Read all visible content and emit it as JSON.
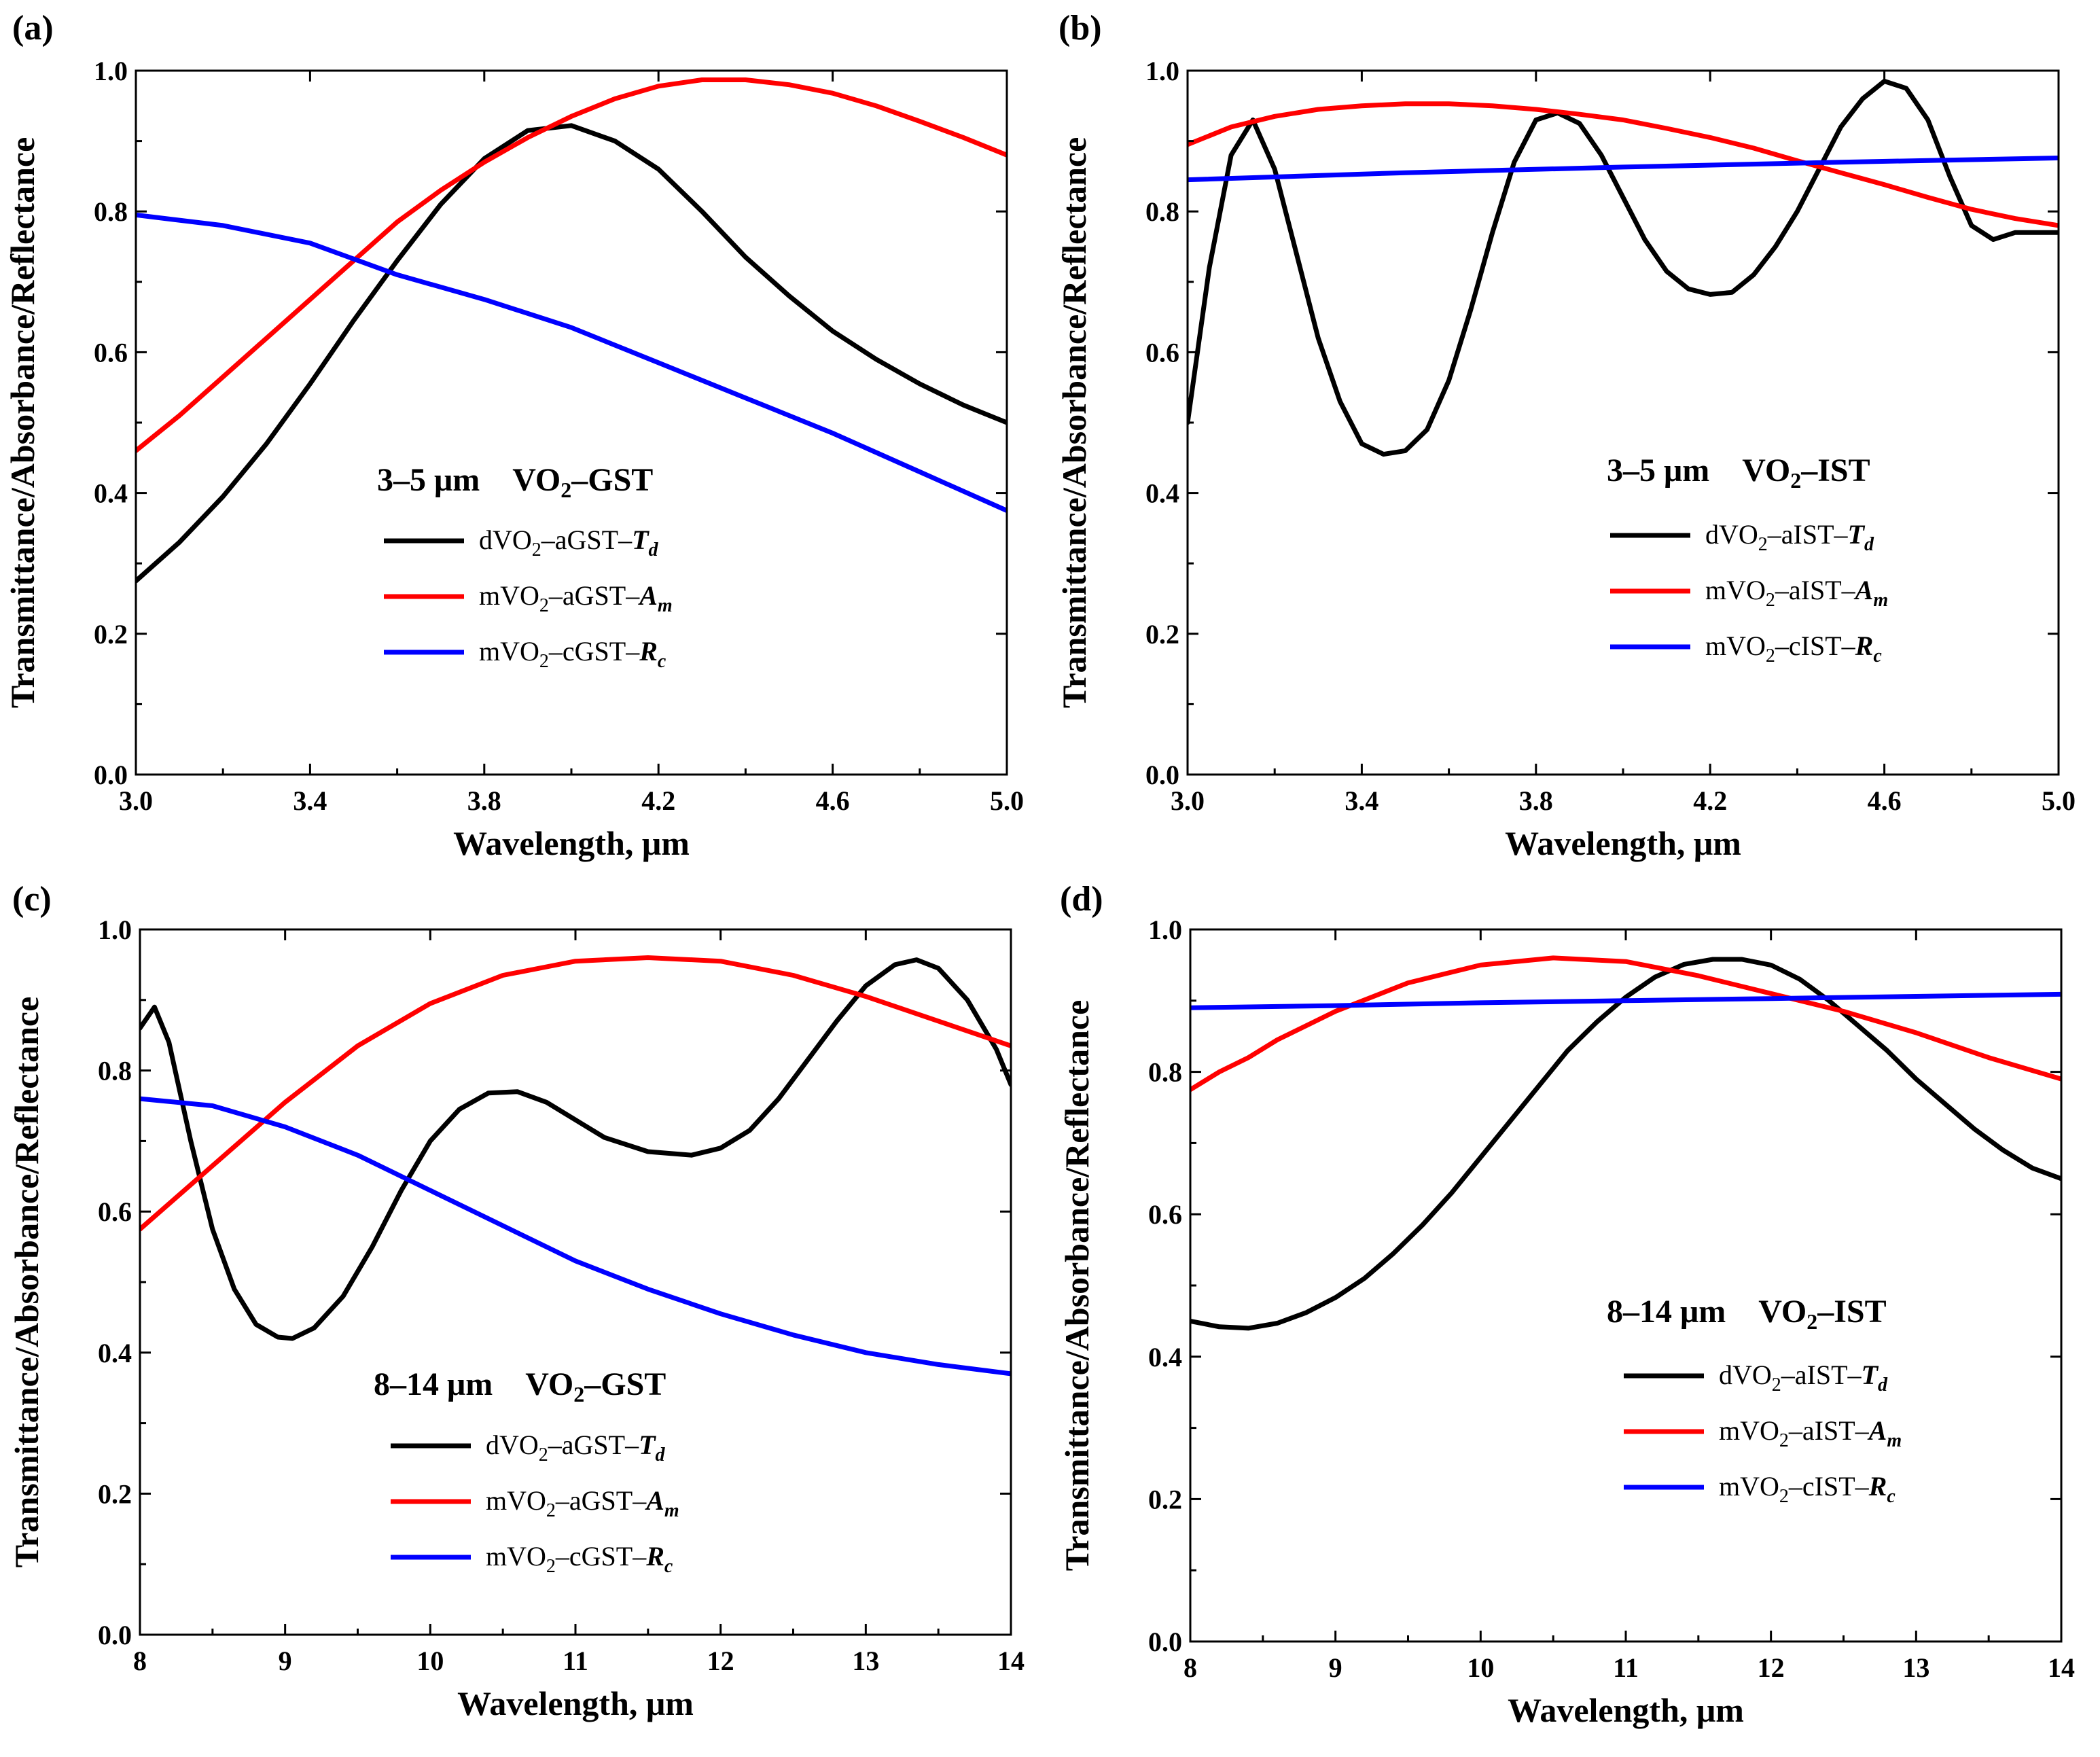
{
  "chart_data": [
    {
      "panel": "(a)",
      "type": "line",
      "annotation": {
        "range": "3–5 μm",
        "material_prefix": "VO",
        "material_sub": "2",
        "material_suffix": "–GST"
      },
      "xlabel": "Wavelength, μm",
      "ylabel": "Transmittance/Absorbance/Reflectance",
      "xlim": [
        3.0,
        5.0
      ],
      "ylim": [
        0.0,
        1.0
      ],
      "xticks": [
        "3.0",
        "3.4",
        "3.8",
        "4.2",
        "4.6",
        "5.0"
      ],
      "yticks": [
        "0.0",
        "0.2",
        "0.4",
        "0.6",
        "0.8",
        "1.0"
      ],
      "legend_position": "lower-center",
      "series": [
        {
          "prefix": "dVO",
          "sub": "2",
          "mid": "–aGST–",
          "sym": "T",
          "symsub": "d",
          "color": "#000000",
          "x": [
            3.0,
            3.1,
            3.2,
            3.3,
            3.4,
            3.5,
            3.6,
            3.7,
            3.8,
            3.9,
            4.0,
            4.1,
            4.2,
            4.3,
            4.4,
            4.5,
            4.6,
            4.7,
            4.8,
            4.9,
            5.0
          ],
          "y": [
            0.275,
            0.33,
            0.395,
            0.47,
            0.555,
            0.645,
            0.73,
            0.81,
            0.875,
            0.915,
            0.922,
            0.9,
            0.86,
            0.8,
            0.735,
            0.68,
            0.63,
            0.59,
            0.555,
            0.525,
            0.5
          ]
        },
        {
          "prefix": "mVO",
          "sub": "2",
          "mid": "–aGST–",
          "sym": "A",
          "symsub": "m",
          "color": "#ff0000",
          "x": [
            3.0,
            3.1,
            3.2,
            3.3,
            3.4,
            3.5,
            3.6,
            3.7,
            3.8,
            3.9,
            4.0,
            4.1,
            4.2,
            4.3,
            4.4,
            4.5,
            4.6,
            4.7,
            4.8,
            4.9,
            5.0
          ],
          "y": [
            0.46,
            0.51,
            0.565,
            0.62,
            0.675,
            0.73,
            0.785,
            0.83,
            0.87,
            0.905,
            0.935,
            0.96,
            0.978,
            0.987,
            0.987,
            0.98,
            0.968,
            0.95,
            0.928,
            0.905,
            0.88
          ]
        },
        {
          "prefix": "mVO",
          "sub": "2",
          "mid": "–cGST–",
          "sym": "R",
          "symsub": "c",
          "color": "#0000ff",
          "x": [
            3.0,
            3.2,
            3.4,
            3.6,
            3.8,
            4.0,
            4.2,
            4.4,
            4.6,
            4.8,
            5.0
          ],
          "y": [
            0.795,
            0.78,
            0.755,
            0.71,
            0.675,
            0.635,
            0.585,
            0.535,
            0.485,
            0.43,
            0.375
          ]
        }
      ]
    },
    {
      "panel": "(b)",
      "type": "line",
      "annotation": {
        "range": "3–5 μm",
        "material_prefix": "VO",
        "material_sub": "2",
        "material_suffix": "–IST"
      },
      "xlabel": "Wavelength, μm",
      "ylabel": "Transmittance/Absorbance/Reflectance",
      "xlim": [
        3.0,
        5.0
      ],
      "ylim": [
        0.0,
        1.0
      ],
      "xticks": [
        "3.0",
        "3.4",
        "3.8",
        "4.2",
        "4.6",
        "5.0"
      ],
      "yticks": [
        "0.0",
        "0.2",
        "0.4",
        "0.6",
        "0.8",
        "1.0"
      ],
      "legend_position": "lower-right",
      "series": [
        {
          "prefix": "dVO",
          "sub": "2",
          "mid": "–aIST–",
          "sym": "T",
          "symsub": "d",
          "color": "#000000",
          "x": [
            3.0,
            3.05,
            3.1,
            3.15,
            3.2,
            3.25,
            3.3,
            3.35,
            3.4,
            3.45,
            3.5,
            3.55,
            3.6,
            3.65,
            3.7,
            3.75,
            3.8,
            3.85,
            3.9,
            3.95,
            4.0,
            4.05,
            4.1,
            4.15,
            4.2,
            4.25,
            4.3,
            4.35,
            4.4,
            4.45,
            4.5,
            4.55,
            4.6,
            4.65,
            4.7,
            4.75,
            4.8,
            4.85,
            4.9,
            4.95,
            5.0
          ],
          "y": [
            0.5,
            0.72,
            0.88,
            0.93,
            0.86,
            0.74,
            0.62,
            0.53,
            0.47,
            0.455,
            0.46,
            0.49,
            0.56,
            0.66,
            0.77,
            0.87,
            0.93,
            0.94,
            0.925,
            0.88,
            0.82,
            0.76,
            0.715,
            0.69,
            0.682,
            0.685,
            0.71,
            0.75,
            0.8,
            0.86,
            0.92,
            0.96,
            0.985,
            0.975,
            0.93,
            0.85,
            0.78,
            0.76,
            0.77,
            0.77,
            0.77
          ]
        },
        {
          "prefix": "mVO",
          "sub": "2",
          "mid": "–aIST–",
          "sym": "A",
          "symsub": "m",
          "color": "#ff0000",
          "x": [
            3.0,
            3.1,
            3.2,
            3.3,
            3.4,
            3.5,
            3.6,
            3.7,
            3.8,
            3.9,
            4.0,
            4.1,
            4.2,
            4.3,
            4.4,
            4.5,
            4.6,
            4.7,
            4.8,
            4.9,
            5.0
          ],
          "y": [
            0.895,
            0.92,
            0.935,
            0.945,
            0.95,
            0.953,
            0.953,
            0.95,
            0.945,
            0.938,
            0.93,
            0.918,
            0.905,
            0.89,
            0.872,
            0.855,
            0.838,
            0.82,
            0.803,
            0.79,
            0.78
          ]
        },
        {
          "prefix": "mVO",
          "sub": "2",
          "mid": "–cIST–",
          "sym": "R",
          "symsub": "c",
          "color": "#0000ff",
          "x": [
            3.0,
            3.5,
            4.0,
            4.5,
            5.0
          ],
          "y": [
            0.845,
            0.855,
            0.863,
            0.87,
            0.876
          ]
        }
      ]
    },
    {
      "panel": "(c)",
      "type": "line",
      "annotation": {
        "range": "8–14 μm",
        "material_prefix": "VO",
        "material_sub": "2",
        "material_suffix": "–GST"
      },
      "xlabel": "Wavelength, μm",
      "ylabel": "Transmittance/Absorbance/Reflectance",
      "xlim": [
        8,
        14
      ],
      "ylim": [
        0.0,
        1.0
      ],
      "xticks": [
        "8",
        "9",
        "10",
        "11",
        "12",
        "13",
        "14"
      ],
      "yticks": [
        "0.0",
        "0.2",
        "0.4",
        "0.6",
        "0.8",
        "1.0"
      ],
      "legend_position": "lower-center",
      "series": [
        {
          "prefix": "dVO",
          "sub": "2",
          "mid": "–aGST–",
          "sym": "T",
          "symsub": "d",
          "color": "#000000",
          "x": [
            8.0,
            8.1,
            8.2,
            8.35,
            8.5,
            8.65,
            8.8,
            8.95,
            9.05,
            9.2,
            9.4,
            9.6,
            9.8,
            10.0,
            10.2,
            10.4,
            10.6,
            10.8,
            11.0,
            11.2,
            11.5,
            11.8,
            12.0,
            12.2,
            12.4,
            12.6,
            12.8,
            13.0,
            13.2,
            13.35,
            13.5,
            13.7,
            13.9,
            14.0
          ],
          "y": [
            0.86,
            0.89,
            0.84,
            0.7,
            0.575,
            0.49,
            0.44,
            0.422,
            0.42,
            0.435,
            0.48,
            0.55,
            0.63,
            0.7,
            0.745,
            0.768,
            0.77,
            0.755,
            0.73,
            0.705,
            0.685,
            0.68,
            0.69,
            0.715,
            0.76,
            0.815,
            0.87,
            0.92,
            0.95,
            0.957,
            0.945,
            0.9,
            0.83,
            0.78
          ]
        },
        {
          "prefix": "mVO",
          "sub": "2",
          "mid": "–aGST–",
          "sym": "A",
          "symsub": "m",
          "color": "#ff0000",
          "x": [
            8.0,
            8.5,
            9.0,
            9.5,
            10.0,
            10.5,
            11.0,
            11.5,
            12.0,
            12.5,
            13.0,
            13.5,
            14.0
          ],
          "y": [
            0.575,
            0.665,
            0.755,
            0.835,
            0.895,
            0.935,
            0.955,
            0.96,
            0.955,
            0.935,
            0.905,
            0.87,
            0.835
          ]
        },
        {
          "prefix": "mVO",
          "sub": "2",
          "mid": "–cGST–",
          "sym": "R",
          "symsub": "c",
          "color": "#0000ff",
          "x": [
            8.0,
            8.5,
            9.0,
            9.5,
            10.0,
            10.5,
            11.0,
            11.5,
            12.0,
            12.5,
            13.0,
            13.5,
            14.0
          ],
          "y": [
            0.76,
            0.75,
            0.72,
            0.68,
            0.63,
            0.58,
            0.53,
            0.49,
            0.455,
            0.425,
            0.4,
            0.383,
            0.37
          ]
        }
      ]
    },
    {
      "panel": "(d)",
      "type": "line",
      "annotation": {
        "range": "8–14 μm",
        "material_prefix": "VO",
        "material_sub": "2",
        "material_suffix": "–IST"
      },
      "xlabel": "Wavelength, μm",
      "ylabel": "Transmittance/Absorbance/Reflectance",
      "xlim": [
        8,
        14
      ],
      "ylim": [
        0.0,
        1.0
      ],
      "xticks": [
        "8",
        "9",
        "10",
        "11",
        "12",
        "13",
        "14"
      ],
      "yticks": [
        "0.0",
        "0.2",
        "0.4",
        "0.6",
        "0.8",
        "1.0"
      ],
      "legend_position": "lower-right",
      "series": [
        {
          "prefix": "dVO",
          "sub": "2",
          "mid": "–aIST–",
          "sym": "T",
          "symsub": "d",
          "color": "#000000",
          "x": [
            8.0,
            8.2,
            8.4,
            8.6,
            8.8,
            9.0,
            9.2,
            9.4,
            9.6,
            9.8,
            10.0,
            10.2,
            10.4,
            10.6,
            10.8,
            11.0,
            11.2,
            11.4,
            11.6,
            11.8,
            12.0,
            12.2,
            12.4,
            12.6,
            12.8,
            13.0,
            13.2,
            13.4,
            13.6,
            13.8,
            14.0
          ],
          "y": [
            0.45,
            0.442,
            0.44,
            0.447,
            0.462,
            0.483,
            0.51,
            0.545,
            0.585,
            0.63,
            0.68,
            0.73,
            0.78,
            0.83,
            0.87,
            0.905,
            0.933,
            0.951,
            0.958,
            0.958,
            0.95,
            0.93,
            0.9,
            0.865,
            0.83,
            0.79,
            0.755,
            0.72,
            0.69,
            0.665,
            0.65
          ]
        },
        {
          "prefix": "mVO",
          "sub": "2",
          "mid": "–aIST–",
          "sym": "A",
          "symsub": "m",
          "color": "#ff0000",
          "x": [
            8.0,
            8.2,
            8.4,
            8.6,
            8.8,
            9.0,
            9.5,
            10.0,
            10.5,
            11.0,
            11.5,
            12.0,
            12.5,
            13.0,
            13.5,
            14.0
          ],
          "y": [
            0.775,
            0.8,
            0.82,
            0.845,
            0.865,
            0.885,
            0.925,
            0.95,
            0.96,
            0.955,
            0.935,
            0.91,
            0.885,
            0.855,
            0.82,
            0.79
          ]
        },
        {
          "prefix": "mVO",
          "sub": "2",
          "mid": "–cIST–",
          "sym": "R",
          "symsub": "c",
          "color": "#0000ff",
          "x": [
            8.0,
            9.0,
            10.0,
            11.0,
            12.0,
            13.0,
            14.0
          ],
          "y": [
            0.89,
            0.893,
            0.897,
            0.9,
            0.903,
            0.906,
            0.909
          ]
        }
      ]
    }
  ]
}
